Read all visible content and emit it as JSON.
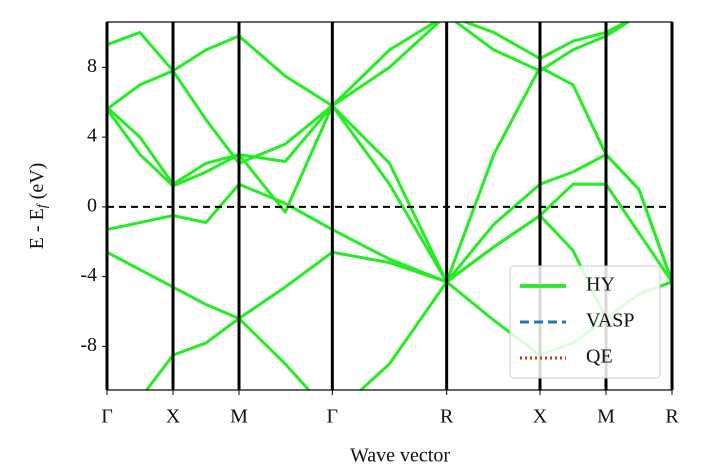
{
  "chart_data": {
    "type": "line",
    "xlabel": "Wave vector",
    "ylabel": {
      "main": "E - E",
      "sub": "f",
      "unit": "(eV)"
    },
    "x": [
      0,
      0.25,
      0.5,
      0.75,
      1.0,
      1.35,
      1.707,
      2.14,
      2.573,
      2.93,
      3.28,
      3.53,
      3.78,
      4.03,
      4.28
    ],
    "xlim": [
      0,
      4.28
    ],
    "xticks": [
      {
        "value": 0,
        "label": "Γ"
      },
      {
        "value": 0.5,
        "label": "X"
      },
      {
        "value": 1.0,
        "label": "M"
      },
      {
        "value": 1.707,
        "label": "Γ"
      },
      {
        "value": 2.573,
        "label": "R"
      },
      {
        "value": 3.28,
        "label": "X"
      },
      {
        "value": 3.78,
        "label": "M"
      },
      {
        "value": 4.28,
        "label": "R"
      }
    ],
    "ylim": [
      -10.5,
      10.6
    ],
    "yticks": [
      -8,
      -4,
      0,
      4,
      8
    ],
    "fermi_level": 0,
    "legend": "lower right",
    "series": [
      {
        "name": "HY",
        "color": "#22ee22",
        "style": "solid",
        "values": [
          [
            -12,
            -11,
            -8.5,
            -7.8,
            -6.4,
            -9,
            -12,
            -9,
            -4.3,
            -6.5,
            -8.5,
            -7.8,
            -6.4,
            -5,
            -4.3
          ],
          [
            -2.6,
            -3.6,
            -4.6,
            -5.6,
            -6.4,
            -4.6,
            -2.6,
            -3.2,
            -4.3,
            -2.3,
            -0.5,
            -2.5,
            -6.4,
            -5,
            -4.3
          ],
          [
            -1.3,
            -0.9,
            -0.5,
            -0.9,
            1.3,
            0.2,
            -1.3,
            -3,
            -4.3,
            -2.3,
            -0.5,
            1.3,
            1.3,
            -1.5,
            -4.3
          ],
          [
            5.6,
            3,
            1.2,
            2,
            3,
            2.6,
            5.8,
            1.3,
            -4.3,
            -1,
            1.3,
            2,
            3,
            1,
            -4.3
          ],
          [
            5.6,
            7,
            7.8,
            9,
            9.8,
            7.5,
            5.8,
            8,
            11,
            9,
            7.8,
            9,
            9.8,
            11,
            12
          ],
          [
            9.3,
            10,
            7.8,
            5,
            2.5,
            3.6,
            5.8,
            9,
            11,
            10,
            8.5,
            9.5,
            10,
            11,
            12
          ],
          [
            5.7,
            4,
            1.3,
            2.5,
            3,
            -0.3,
            5.8,
            2.5,
            -4.3,
            3,
            8,
            7,
            3,
            1,
            -4.3
          ]
        ]
      },
      {
        "name": "VASP",
        "color": "#1f77b4",
        "style": "dashed",
        "values": [
          [
            -12,
            -11,
            -8.5,
            -7.8,
            -6.4,
            -9,
            -12,
            -9,
            -4.3,
            -6.5,
            -8.5,
            -7.8,
            -6.4,
            -5,
            -4.3
          ],
          [
            -2.6,
            -3.6,
            -4.6,
            -5.6,
            -6.4,
            -4.6,
            -2.6,
            -3.2,
            -4.3,
            -2.3,
            -0.5,
            -2.5,
            -6.4,
            -5,
            -4.3
          ],
          [
            -1.3,
            -0.9,
            -0.5,
            -0.9,
            1.3,
            0.2,
            -1.3,
            -3,
            -4.3,
            -2.3,
            -0.5,
            1.3,
            1.3,
            -1.5,
            -4.3
          ],
          [
            5.6,
            3,
            1.2,
            2,
            3,
            2.6,
            5.8,
            1.3,
            -4.3,
            -1,
            1.3,
            2,
            3,
            1,
            -4.3
          ],
          [
            5.6,
            7,
            7.8,
            9,
            9.8,
            7.5,
            5.8,
            8,
            11,
            9,
            7.8,
            9,
            9.8,
            11,
            12
          ],
          [
            9.3,
            10,
            7.8,
            5,
            2.5,
            3.6,
            5.8,
            9,
            11,
            10,
            8.5,
            9.5,
            10,
            11,
            12
          ],
          [
            5.7,
            4,
            1.3,
            2.5,
            3,
            -0.3,
            5.8,
            2.5,
            -4.3,
            3,
            8,
            7,
            3,
            1,
            -4.3
          ]
        ]
      },
      {
        "name": "QE",
        "color": "#b5371a",
        "style": "dotted",
        "values": [
          [
            -12,
            -11,
            -8.5,
            -7.8,
            -6.4,
            -9,
            -12,
            -9,
            -4.3,
            -6.5,
            -8.5,
            -7.8,
            -6.4,
            -5,
            -4.3
          ],
          [
            -2.6,
            -3.6,
            -4.6,
            -5.6,
            -6.4,
            -4.6,
            -2.6,
            -3.2,
            -4.3,
            -2.3,
            -0.5,
            -2.5,
            -6.4,
            -5,
            -4.3
          ],
          [
            -1.3,
            -0.9,
            -0.5,
            -0.9,
            1.3,
            0.2,
            -1.3,
            -3,
            -4.3,
            -2.3,
            -0.5,
            1.3,
            1.3,
            -1.5,
            -4.3
          ],
          [
            5.6,
            3,
            1.2,
            2,
            3,
            2.6,
            5.8,
            1.3,
            -4.3,
            -1,
            1.3,
            2,
            3,
            1,
            -4.3
          ],
          [
            5.6,
            7,
            7.8,
            9,
            9.8,
            7.5,
            5.8,
            8,
            11,
            9,
            7.8,
            9,
            9.8,
            11,
            12
          ],
          [
            9.3,
            10,
            7.8,
            5,
            2.5,
            3.6,
            5.8,
            9,
            11,
            10,
            8.5,
            9.5,
            10,
            11,
            12
          ],
          [
            5.7,
            4,
            1.3,
            2.5,
            3,
            -0.3,
            5.8,
            2.5,
            -4.3,
            3,
            8,
            7,
            3,
            1,
            -4.3
          ]
        ]
      }
    ]
  }
}
